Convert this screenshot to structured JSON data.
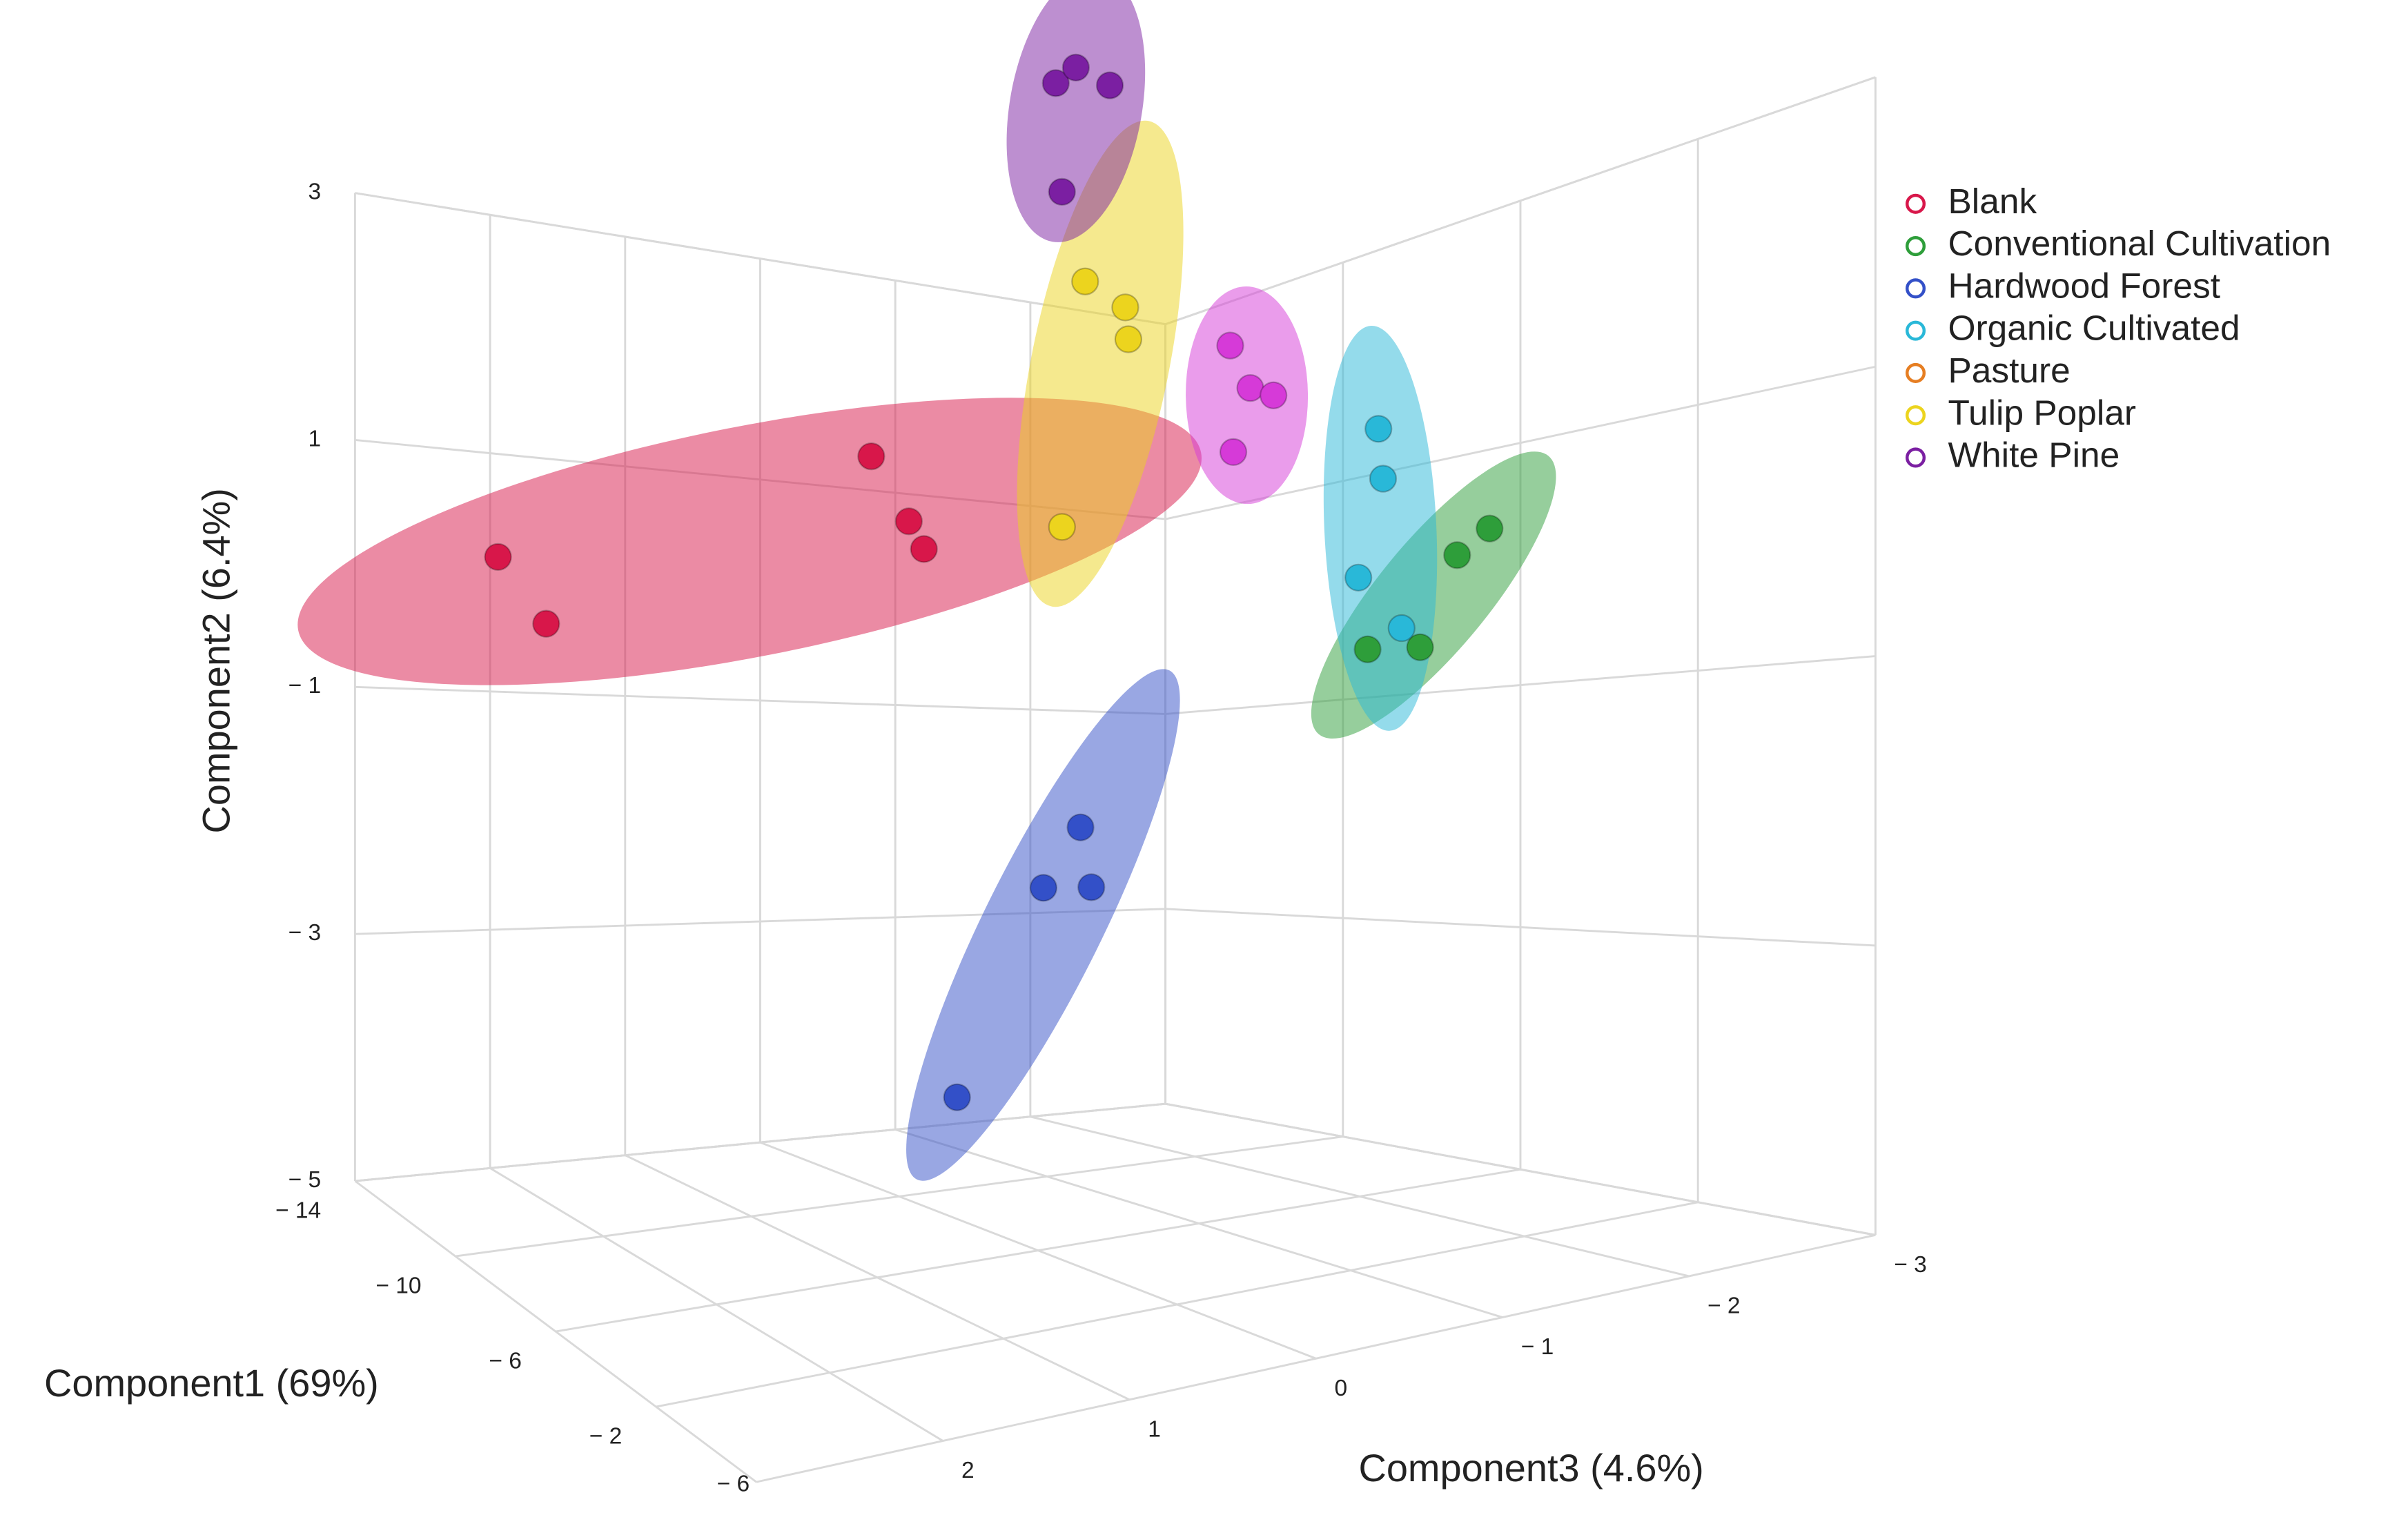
{
  "chart_data": {
    "type": "scatter3d",
    "x_label": "Component1 (69%)",
    "y_label": "Component2 (6.4%)",
    "z_label": "Component3 (4.6%)",
    "xlim": [
      -14,
      2
    ],
    "ylim": [
      -5,
      3
    ],
    "zlim": [
      3,
      -3
    ],
    "xticks": [
      {
        "value": -14,
        "label": "− 14"
      },
      {
        "value": -10,
        "label": "− 10"
      },
      {
        "value": -6,
        "label": "− 6"
      },
      {
        "value": -2,
        "label": "− 2"
      }
    ],
    "yticks": [
      {
        "value": -5,
        "label": "− 5"
      },
      {
        "value": -3,
        "label": "− 3"
      },
      {
        "value": -1,
        "label": "− 1"
      },
      1,
      3
    ],
    "zticks": [
      2,
      1,
      0,
      {
        "value": -1,
        "label": "− 1"
      },
      {
        "value": -2,
        "label": "− 2"
      },
      {
        "value": -3,
        "label": "− 3"
      }
    ],
    "corner_label": "− 6",
    "grid": true,
    "legend": "right",
    "ellipses": true,
    "series": [
      {
        "name": "Blank",
        "color": "#d8174a",
        "x": [
          -9.2,
          -9.2,
          -9.2,
          -9.2,
          -9.2
        ],
        "y": [
          0.19,
          -0.3,
          1.01,
          0.5,
          0.28
        ],
        "z": [
          2.85,
          2.53,
          0.37,
          0.12,
          0.02
        ]
      },
      {
        "name": "Conventional Cultivation",
        "color": "#2e9e3a",
        "x": [
          0.7,
          -0.14,
          -1.1,
          -2.46
        ],
        "y": [
          0.15,
          -0.01,
          -0.63,
          -0.63
        ],
        "z": [
          -1.2,
          -1.2,
          -1.2,
          -1.2
        ]
      },
      {
        "name": "Hardwood Forest",
        "color": "#3350c8",
        "x": [
          -9.9,
          -10.86,
          -9.62,
          -13.1
        ],
        "y": [
          -2.05,
          -2.6,
          -2.55,
          -4.63
        ],
        "z": [
          -1.2,
          -1.2,
          -1.2,
          -1.2
        ]
      },
      {
        "name": "Organic Cultivated",
        "color": "#29b8d8",
        "x": [
          -2.18,
          -2.06,
          -2.7,
          -1.58
        ],
        "y": [
          0.94,
          0.58,
          -0.11,
          -0.49
        ],
        "z": [
          -1.2,
          -1.2,
          -1.2,
          -1.2
        ]
      },
      {
        "name": "Pasture",
        "color": "#e67e22",
        "marker_color": "#d63ad8",
        "x": [
          -6.02,
          -5.5,
          -4.9,
          -5.94
        ],
        "y": [
          1.77,
          1.41,
          1.32,
          0.94
        ],
        "z": [
          -1.2,
          -1.2,
          -1.2,
          -1.2
        ]
      },
      {
        "name": "Tulip Poplar",
        "color": "#ecd41e",
        "x": [
          -9.78,
          -8.74,
          -8.66,
          -10.38
        ],
        "y": [
          2.59,
          2.28,
          2.01,
          0.53
        ],
        "z": [
          -1.2,
          -1.2,
          -1.2,
          -1.2
        ]
      },
      {
        "name": "White Pine",
        "color": "#7b1fa2",
        "x": [
          -10.54,
          -10.02,
          -9.14,
          -10.38
        ],
        "y": [
          4.38,
          4.44,
          4.17,
          3.42
        ],
        "z": [
          -1.2,
          -1.2,
          -1.2,
          -1.2
        ]
      }
    ]
  }
}
